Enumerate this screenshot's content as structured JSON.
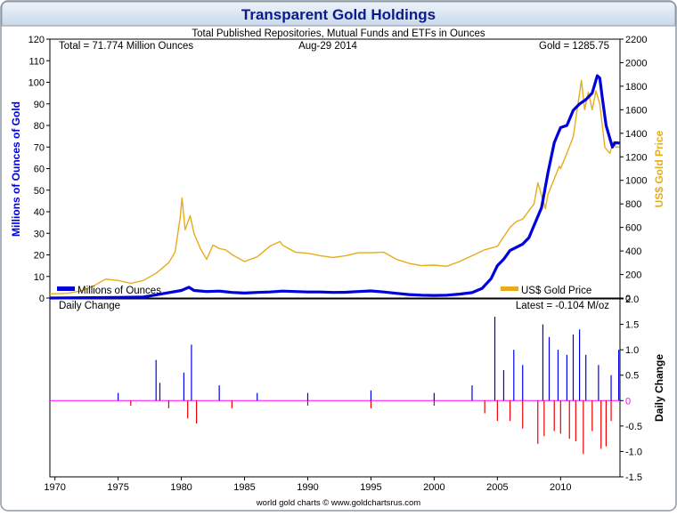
{
  "chart_data": {
    "type": "line",
    "title": "Transparent Gold Holdings",
    "subtitle": "Total Published Repositories, Mutual Funds and ETFs in Ounces",
    "annotations": {
      "total": "Total = 71.774 Million Ounces",
      "date": "Aug-29  2014",
      "gold": "Gold = 1285.75",
      "latest": "Latest = -0.104 M/oz"
    },
    "footer": "world gold charts © www.goldchartsrus.com",
    "upper_panel": {
      "ylabel_left": "Millions of Ounces of Gold",
      "ylabel_right": "US$ Gold Price",
      "ylim_left": [
        0,
        120
      ],
      "ylim_right": [
        0,
        2200
      ],
      "yticks_left": [
        "0",
        "10",
        "20",
        "30",
        "40",
        "50",
        "60",
        "70",
        "80",
        "90",
        "100",
        "110",
        "120"
      ],
      "yticks_right": [
        "0",
        "200",
        "400",
        "600",
        "800",
        "1000",
        "1200",
        "1400",
        "1600",
        "1800",
        "2000",
        "2200"
      ],
      "legend": [
        "Millions of Ounces",
        "US$ Gold Price"
      ],
      "series": [
        {
          "name": "Millions of Ounces",
          "color": "#0000dd",
          "points": [
            [
              1969.6,
              0
            ],
            [
              1975,
              0.3
            ],
            [
              1977,
              0.5
            ],
            [
              1978,
              1.5
            ],
            [
              1979,
              2.5
            ],
            [
              1980,
              3.5
            ],
            [
              1980.6,
              5
            ],
            [
              1981,
              3.5
            ],
            [
              1982,
              3
            ],
            [
              1983,
              3.2
            ],
            [
              1984,
              2.6
            ],
            [
              1985,
              2.3
            ],
            [
              1986,
              2.6
            ],
            [
              1987,
              2.8
            ],
            [
              1988,
              3.2
            ],
            [
              1989,
              3
            ],
            [
              1990,
              2.8
            ],
            [
              1991,
              2.8
            ],
            [
              1992,
              2.6
            ],
            [
              1993,
              2.7
            ],
            [
              1994,
              3
            ],
            [
              1995,
              3.3
            ],
            [
              1996,
              2.8
            ],
            [
              1997,
              2.2
            ],
            [
              1998,
              1.6
            ],
            [
              1999,
              1.3
            ],
            [
              2000,
              1.2
            ],
            [
              2001,
              1.3
            ],
            [
              2002,
              1.8
            ],
            [
              2003,
              2.5
            ],
            [
              2003.8,
              4.5
            ],
            [
              2004.5,
              9
            ],
            [
              2005,
              15
            ],
            [
              2005.5,
              18
            ],
            [
              2006,
              22
            ],
            [
              2007,
              25
            ],
            [
              2007.5,
              28
            ],
            [
              2008,
              35
            ],
            [
              2008.5,
              42
            ],
            [
              2009,
              58
            ],
            [
              2009.5,
              72
            ],
            [
              2010,
              79
            ],
            [
              2010.5,
              80
            ],
            [
              2011,
              87
            ],
            [
              2011.5,
              90
            ],
            [
              2012,
              92
            ],
            [
              2012.5,
              95
            ],
            [
              2012.9,
              103
            ],
            [
              2013.1,
              102
            ],
            [
              2013.3,
              93
            ],
            [
              2013.6,
              80
            ],
            [
              2013.9,
              74
            ],
            [
              2014.1,
              70
            ],
            [
              2014.3,
              72
            ],
            [
              2014.66,
              71.8
            ]
          ]
        },
        {
          "name": "US$ Gold Price",
          "color": "#e6ad1a",
          "points": [
            [
              1969.6,
              35
            ],
            [
              1971,
              40
            ],
            [
              1972,
              60
            ],
            [
              1973,
              100
            ],
            [
              1974,
              160
            ],
            [
              1975,
              150
            ],
            [
              1976,
              125
            ],
            [
              1977,
              150
            ],
            [
              1978,
              210
            ],
            [
              1979,
              300
            ],
            [
              1979.5,
              390
            ],
            [
              1979.9,
              680
            ],
            [
              1980.05,
              850
            ],
            [
              1980.3,
              580
            ],
            [
              1980.7,
              700
            ],
            [
              1981,
              550
            ],
            [
              1981.5,
              420
            ],
            [
              1982,
              330
            ],
            [
              1982.5,
              450
            ],
            [
              1983,
              420
            ],
            [
              1983.5,
              410
            ],
            [
              1984,
              370
            ],
            [
              1985,
              310
            ],
            [
              1986,
              350
            ],
            [
              1987,
              440
            ],
            [
              1987.8,
              480
            ],
            [
              1988,
              450
            ],
            [
              1989,
              390
            ],
            [
              1990,
              380
            ],
            [
              1991,
              360
            ],
            [
              1992,
              345
            ],
            [
              1993,
              360
            ],
            [
              1994,
              385
            ],
            [
              1995,
              385
            ],
            [
              1996,
              390
            ],
            [
              1997,
              330
            ],
            [
              1998,
              295
            ],
            [
              1999,
              275
            ],
            [
              2000,
              280
            ],
            [
              2001,
              270
            ],
            [
              2002,
              310
            ],
            [
              2003,
              360
            ],
            [
              2004,
              410
            ],
            [
              2005,
              440
            ],
            [
              2006,
              600
            ],
            [
              2006.5,
              650
            ],
            [
              2007,
              670
            ],
            [
              2007.9,
              800
            ],
            [
              2008.2,
              980
            ],
            [
              2008.8,
              760
            ],
            [
              2009,
              880
            ],
            [
              2009.9,
              1120
            ],
            [
              2010,
              1100
            ],
            [
              2010.5,
              1230
            ],
            [
              2011,
              1370
            ],
            [
              2011.65,
              1850
            ],
            [
              2011.9,
              1600
            ],
            [
              2012.2,
              1750
            ],
            [
              2012.5,
              1600
            ],
            [
              2012.8,
              1760
            ],
            [
              2013.1,
              1650
            ],
            [
              2013.5,
              1280
            ],
            [
              2013.9,
              1230
            ],
            [
              2014.2,
              1330
            ],
            [
              2014.4,
              1280
            ],
            [
              2014.66,
              1285.75
            ]
          ]
        }
      ]
    },
    "lower_panel": {
      "title": "Daily Change",
      "ylabel_right": "Daily Change",
      "ylim": [
        -1.5,
        2.0
      ],
      "yticks": [
        "-1.5",
        "-1.0",
        "-0.5",
        "0",
        "0.5",
        "1.0",
        "1.5",
        "2.0"
      ],
      "positive_color": "#0000ee",
      "negative_color": "#ee0000",
      "zero_line_color": "#ff00ff",
      "spikes_up": [
        [
          1975,
          0.15
        ],
        [
          1978,
          0.8
        ],
        [
          1978.3,
          0.35
        ],
        [
          1980.2,
          0.55
        ],
        [
          1980.8,
          1.1
        ],
        [
          1983,
          0.3
        ],
        [
          1986,
          0.15
        ],
        [
          1990,
          0.15
        ],
        [
          1995,
          0.2
        ],
        [
          2000,
          0.15
        ],
        [
          2003,
          0.3
        ],
        [
          2004.8,
          1.65
        ],
        [
          2005.5,
          0.6
        ],
        [
          2006.3,
          1.0
        ],
        [
          2007,
          0.7
        ],
        [
          2008.6,
          1.5
        ],
        [
          2009.1,
          1.25
        ],
        [
          2009.8,
          1.0
        ],
        [
          2010.5,
          0.9
        ],
        [
          2011,
          1.3
        ],
        [
          2011.5,
          1.4
        ],
        [
          2012,
          0.9
        ],
        [
          2013,
          0.7
        ],
        [
          2014,
          0.5
        ],
        [
          2014.6,
          1.0
        ]
      ],
      "spikes_down": [
        [
          1976,
          -0.1
        ],
        [
          1979,
          -0.15
        ],
        [
          1980.5,
          -0.35
        ],
        [
          1981.2,
          -0.45
        ],
        [
          1984,
          -0.15
        ],
        [
          1990,
          -0.1
        ],
        [
          1995,
          -0.15
        ],
        [
          2000,
          -0.1
        ],
        [
          2004,
          -0.25
        ],
        [
          2005,
          -0.4
        ],
        [
          2006,
          -0.4
        ],
        [
          2007,
          -0.55
        ],
        [
          2008.2,
          -0.85
        ],
        [
          2008.7,
          -0.7
        ],
        [
          2009.5,
          -0.6
        ],
        [
          2010,
          -0.65
        ],
        [
          2010.7,
          -0.75
        ],
        [
          2011.2,
          -0.8
        ],
        [
          2011.8,
          -1.05
        ],
        [
          2012.5,
          -0.6
        ],
        [
          2013.2,
          -0.95
        ],
        [
          2013.6,
          -0.9
        ],
        [
          2014,
          -0.4
        ]
      ]
    },
    "xaxis": {
      "xlim": [
        1969.6,
        2014.7
      ],
      "ticks": [
        "1970",
        "1975",
        "1980",
        "1985",
        "1990",
        "1995",
        "2000",
        "2005",
        "2010"
      ]
    }
  }
}
